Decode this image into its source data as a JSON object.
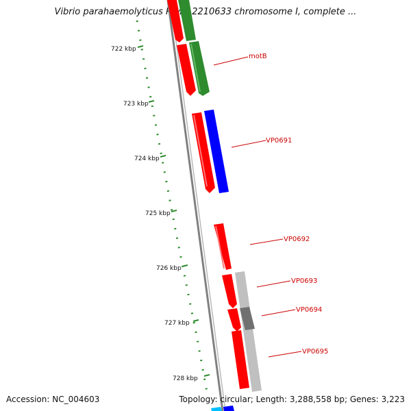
{
  "title": "Vibrio parahaemolyticus RIMD 2210633 chromosome I, complete ...",
  "footer": {
    "accession": "Accession: NC_004603",
    "summary": "Topology: circular; Length: 3,288,558 bp; Genes: 3,223"
  },
  "colors": {
    "forward_gene": "#ff0000",
    "reverse_gene": "#2e8b2e",
    "blue_feature": "#0000ff",
    "gray_feature": "#c0c0c0",
    "dark_gray_feature": "#707070",
    "backbone": "#808080",
    "scale_dots": "#2e8b2e",
    "label": "#cc0000"
  },
  "scale": {
    "ticks": [
      {
        "label": "722 kbp",
        "kbp": 722
      },
      {
        "label": "723 kbp",
        "kbp": 723
      },
      {
        "label": "724 kbp",
        "kbp": 724
      },
      {
        "label": "725 kbp",
        "kbp": 725
      },
      {
        "label": "726 kbp",
        "kbp": 726
      },
      {
        "label": "727 kbp",
        "kbp": 727
      },
      {
        "label": "728 kbp",
        "kbp": 728
      }
    ]
  },
  "gene_labels": [
    {
      "name": "motB"
    },
    {
      "name": "VP0691"
    },
    {
      "name": "VP0692"
    },
    {
      "name": "VP0693"
    },
    {
      "name": "VP0694"
    },
    {
      "name": "VP0695"
    }
  ]
}
